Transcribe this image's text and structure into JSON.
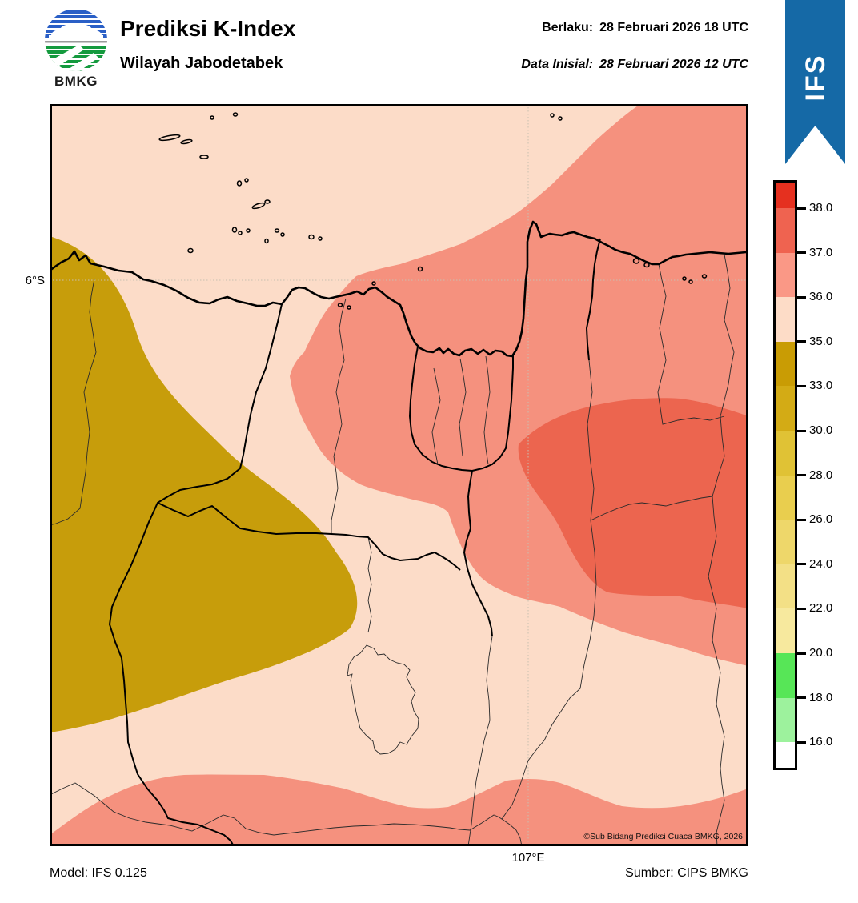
{
  "header": {
    "logo_text": "BMKG",
    "title": "Prediksi K-Index",
    "subtitle": "Wilayah Jabodetabek",
    "berlaku_label": "Berlaku:",
    "berlaku_value": "28 Februari 2026 18 UTC",
    "inisial_label": "Data Inisial:",
    "inisial_value": "28 Februari 2026 12 UTC",
    "ribbon_label": "IFS",
    "ribbon_color": "#1569a6"
  },
  "map": {
    "lat_tick": "6°S",
    "lon_tick": "107°E",
    "copyright": "©Sub Bidang Prediksi Cuaca BMKG, 2026",
    "fill_colors": {
      "pale": "#fcdcc8",
      "salmon": "#f5917e",
      "red": "#ec654f",
      "olive": "#c79d0b",
      "grid": "#c9bfb0"
    }
  },
  "colorbar": {
    "tick_labels": [
      "38.0",
      "37.0",
      "36.0",
      "35.0",
      "33.0",
      "30.0",
      "28.0",
      "26.0",
      "24.0",
      "22.0",
      "20.0",
      "18.0",
      "16.0"
    ],
    "segment_colors": [
      "#e5301f",
      "#ef6350",
      "#fa9886",
      "#fddcc7",
      "#c99c04",
      "#d3ab15",
      "#e0c235",
      "#e9ce4e",
      "#eed76a",
      "#f3e086",
      "#f7e99e",
      "#57e657",
      "#9df29d",
      "#ffffff"
    ]
  },
  "footer": {
    "model": "Model: IFS 0.125",
    "source": "Sumber: CIPS BMKG"
  }
}
